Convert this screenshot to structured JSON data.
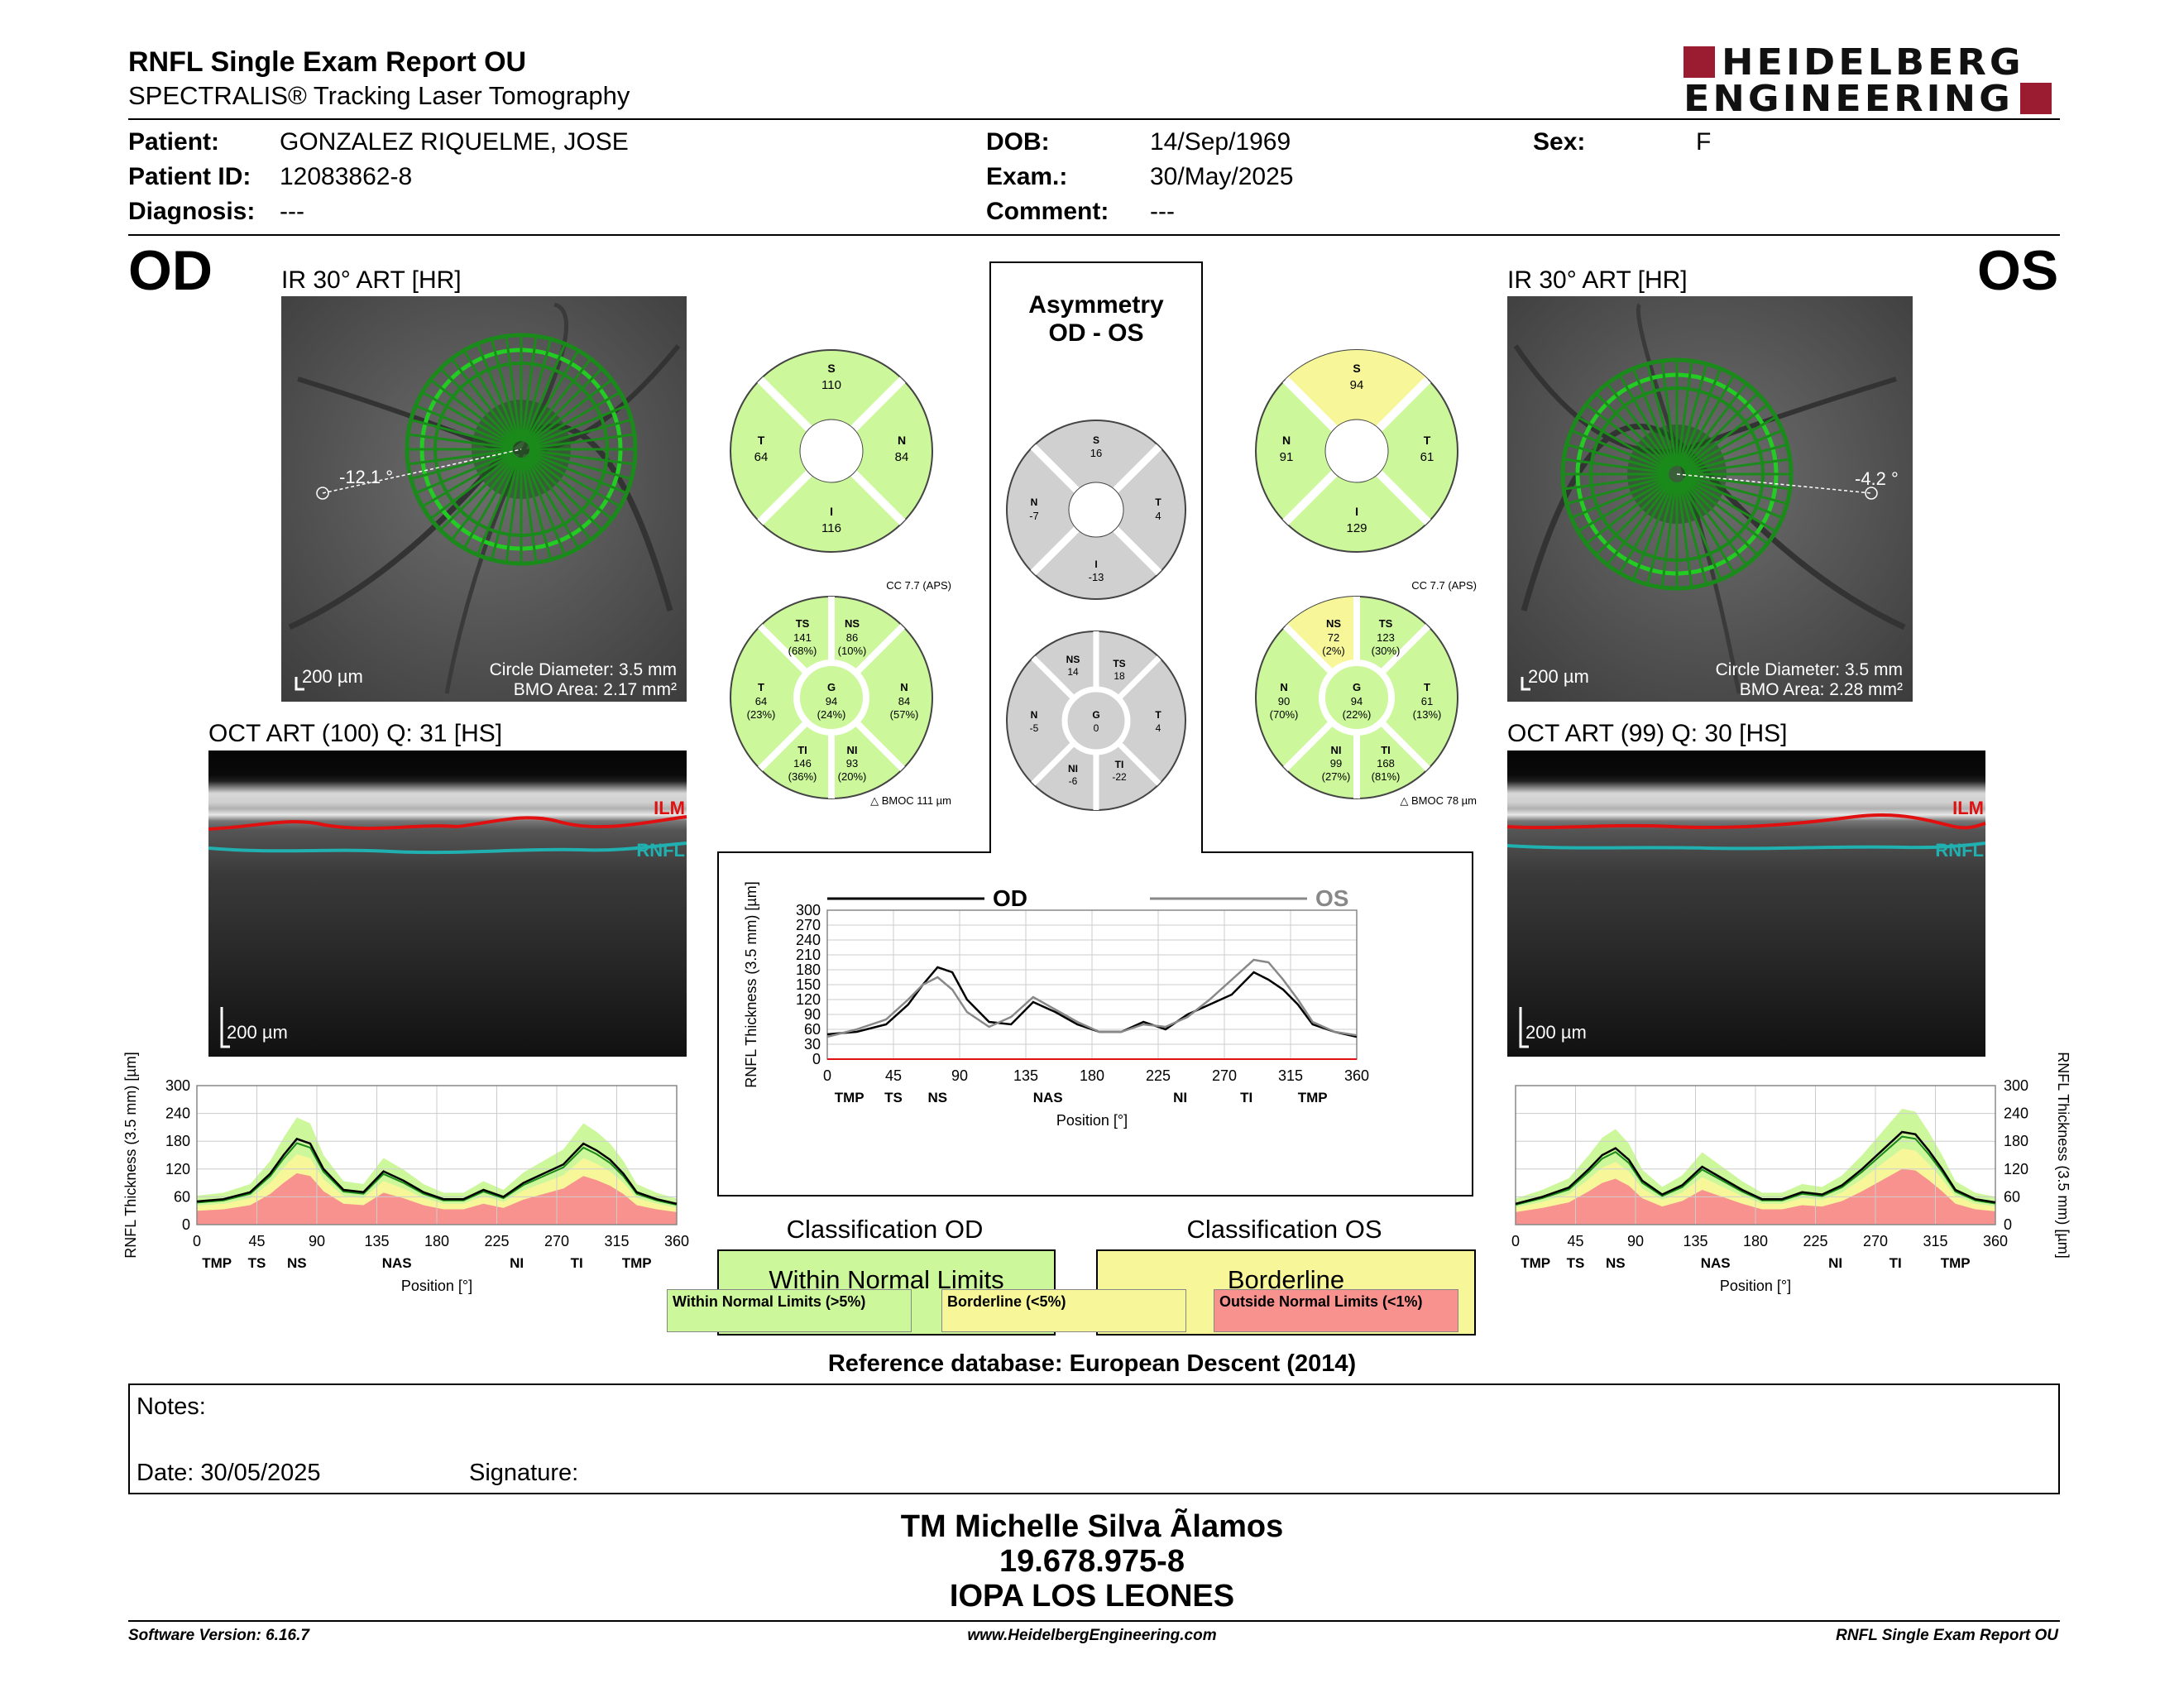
{
  "header": {
    "title": "RNFL Single Exam Report OU",
    "subtitle": "SPECTRALIS® Tracking Laser Tomography",
    "logo_line1": "HEIDELBERG",
    "logo_line2": "ENGINEERING",
    "brand_color": "#9b1b30"
  },
  "patient": {
    "patient_label": "Patient:",
    "patient_value": "GONZALEZ RIQUELME, JOSE",
    "id_label": "Patient ID:",
    "id_value": "12083862-8",
    "diagnosis_label": "Diagnosis:",
    "diagnosis_value": "---",
    "dob_label": "DOB:",
    "dob_value": "14/Sep/1969",
    "exam_label": "Exam.:",
    "exam_value": "30/May/2025",
    "comment_label": "Comment:",
    "comment_value": "---",
    "sex_label": "Sex:",
    "sex_value": "F"
  },
  "od": {
    "eye_label": "OD",
    "ir_title": "IR 30° ART [HR]",
    "angle": "-12.1 °",
    "scale": "200 µm",
    "circle_diameter": "Circle Diameter: 3.5 mm",
    "bmo_area": "BMO Area: 2.17 mm²",
    "oct_title": "OCT ART (100) Q: 31 [HS]",
    "oct_scale": "200 µm",
    "ilm": "ILM",
    "rnfl": "RNFL",
    "quad": {
      "S": "110",
      "T": "64",
      "N": "84",
      "I": "116"
    },
    "sector": {
      "TS": "141",
      "TS_pct": "(68%)",
      "NS": "86",
      "NS_pct": "(10%)",
      "T": "64",
      "T_pct": "(23%)",
      "G": "94",
      "G_pct": "(24%)",
      "N": "84",
      "N_pct": "(57%)",
      "TI": "146",
      "TI_pct": "(36%)",
      "NI": "93",
      "NI_pct": "(20%)"
    },
    "cc": "CC 7.7 (APS)",
    "bmoc": "BMOC 111 µm",
    "classification_title": "Classification OD",
    "classification": "Within Normal Limits"
  },
  "os": {
    "eye_label": "OS",
    "ir_title": "IR 30° ART [HR]",
    "angle": "-4.2 °",
    "scale": "200 µm",
    "circle_diameter": "Circle Diameter: 3.5 mm",
    "bmo_area": "BMO Area: 2.28 mm²",
    "oct_title": "OCT ART (99) Q: 30 [HS]",
    "oct_scale": "200 µm",
    "ilm": "ILM",
    "rnfl": "RNFL",
    "quad": {
      "S": "94",
      "N": "91",
      "T": "61",
      "I": "129"
    },
    "sector": {
      "NS": "72",
      "NS_pct": "(2%)",
      "TS": "123",
      "TS_pct": "(30%)",
      "N": "90",
      "N_pct": "(70%)",
      "G": "94",
      "G_pct": "(22%)",
      "T": "61",
      "T_pct": "(13%)",
      "NI": "99",
      "NI_pct": "(27%)",
      "TI": "168",
      "TI_pct": "(81%)"
    },
    "cc": "CC 7.7 (APS)",
    "bmoc": "BMOC 78 µm",
    "classification_title": "Classification OS",
    "classification": "Borderline"
  },
  "asymmetry": {
    "title1": "Asymmetry",
    "title2": "OD - OS",
    "quad": {
      "S": "16",
      "N": "-7",
      "T": "4",
      "I": "-13"
    },
    "sector": {
      "NS": "14",
      "TS": "18",
      "N": "-5",
      "G": "0",
      "T": "4",
      "NI": "-6",
      "TI": "-22"
    }
  },
  "colors": {
    "normal": "#ccf79a",
    "borderline": "#f7f79a",
    "outside": "#f7928e",
    "asym_gray": "#d0d0d0",
    "ilm": "#e01010",
    "rnfl_line": "#20b0b0",
    "circle": "#22cc22"
  },
  "legend": {
    "wnl": "Within Normal Limits (>5%)",
    "bl": "Borderline (<5%)",
    "onl": "Outside Normal Limits (<1%)"
  },
  "reference_db": "Reference database: European Descent (2014)",
  "notes": {
    "notes_label": "Notes:",
    "date_label": "Date: 30/05/2025",
    "signature_label": "Signature:"
  },
  "signer": {
    "name": "TM Michelle Silva Ãlamos",
    "rut": "19.678.975-8",
    "clinic": "IOPA LOS LEONES"
  },
  "footer": {
    "software": "Software Version: 6.16.7",
    "website": "www.HeidelbergEngineering.com",
    "report": "RNFL Single Exam Report OU"
  },
  "chart_data": [
    {
      "type": "line",
      "name": "OD RNFL thickness profile",
      "ylabel": "RNFL Thickness (3.5 mm) [µm]",
      "xlabel": "Position [°]",
      "xlim": [
        0,
        360
      ],
      "ylim": [
        0,
        300
      ],
      "x_ticks": [
        0,
        45,
        90,
        135,
        180,
        225,
        270,
        315,
        360
      ],
      "y_ticks": [
        0,
        60,
        120,
        180,
        240,
        300
      ],
      "sector_labels": [
        "TMP",
        "TS",
        "NS",
        "NAS",
        "NI",
        "TI",
        "TMP"
      ],
      "x": [
        0,
        20,
        40,
        55,
        65,
        75,
        85,
        95,
        110,
        125,
        140,
        155,
        170,
        185,
        200,
        215,
        230,
        245,
        260,
        275,
        290,
        300,
        310,
        320,
        330,
        345,
        360
      ],
      "series": [
        {
          "name": "OD",
          "values": [
            50,
            55,
            70,
            110,
            150,
            185,
            175,
            120,
            75,
            70,
            115,
            95,
            70,
            55,
            55,
            75,
            60,
            90,
            110,
            130,
            175,
            160,
            140,
            110,
            70,
            55,
            45
          ]
        }
      ]
    },
    {
      "type": "line",
      "name": "OD - OS comparison",
      "ylabel": "RNFL Thickness (3.5 mm) [µm]",
      "xlabel": "Position [°]",
      "xlim": [
        0,
        360
      ],
      "ylim": [
        0,
        300
      ],
      "x_ticks": [
        0,
        45,
        90,
        135,
        180,
        225,
        270,
        315,
        360
      ],
      "y_ticks": [
        0,
        30,
        60,
        90,
        120,
        150,
        180,
        210,
        240,
        270,
        300
      ],
      "sector_labels": [
        "TMP",
        "TS",
        "NS",
        "NAS",
        "NI",
        "TI",
        "TMP"
      ],
      "legend": [
        "OD",
        "OS"
      ],
      "x": [
        0,
        20,
        40,
        55,
        65,
        75,
        85,
        95,
        110,
        125,
        140,
        155,
        170,
        185,
        200,
        215,
        230,
        245,
        260,
        275,
        290,
        300,
        310,
        320,
        330,
        345,
        360
      ],
      "series": [
        {
          "name": "OD",
          "values": [
            50,
            55,
            70,
            110,
            150,
            185,
            175,
            120,
            75,
            70,
            115,
            95,
            70,
            55,
            55,
            75,
            60,
            90,
            110,
            130,
            175,
            160,
            140,
            110,
            70,
            55,
            45
          ]
        },
        {
          "name": "OS",
          "values": [
            45,
            60,
            80,
            120,
            150,
            165,
            140,
            95,
            65,
            85,
            125,
            100,
            75,
            55,
            55,
            70,
            65,
            85,
            120,
            160,
            200,
            195,
            160,
            120,
            75,
            55,
            48
          ]
        }
      ]
    },
    {
      "type": "line",
      "name": "OS RNFL thickness profile",
      "ylabel": "RNFL Thickness (3.5 mm) [µm]",
      "xlabel": "Position [°]",
      "xlim": [
        0,
        360
      ],
      "ylim": [
        0,
        300
      ],
      "x_ticks": [
        0,
        45,
        90,
        135,
        180,
        225,
        270,
        315,
        360
      ],
      "y_ticks": [
        0,
        60,
        120,
        180,
        240,
        300
      ],
      "sector_labels": [
        "TMP",
        "TS",
        "NS",
        "NAS",
        "NI",
        "TI",
        "TMP"
      ],
      "x": [
        0,
        20,
        40,
        55,
        65,
        75,
        85,
        95,
        110,
        125,
        140,
        155,
        170,
        185,
        200,
        215,
        230,
        245,
        260,
        275,
        290,
        300,
        310,
        320,
        330,
        345,
        360
      ],
      "series": [
        {
          "name": "OS",
          "values": [
            45,
            60,
            80,
            120,
            150,
            165,
            140,
            95,
            65,
            85,
            125,
            100,
            75,
            55,
            55,
            70,
            65,
            85,
            120,
            160,
            200,
            195,
            160,
            120,
            75,
            55,
            48
          ]
        }
      ]
    }
  ]
}
